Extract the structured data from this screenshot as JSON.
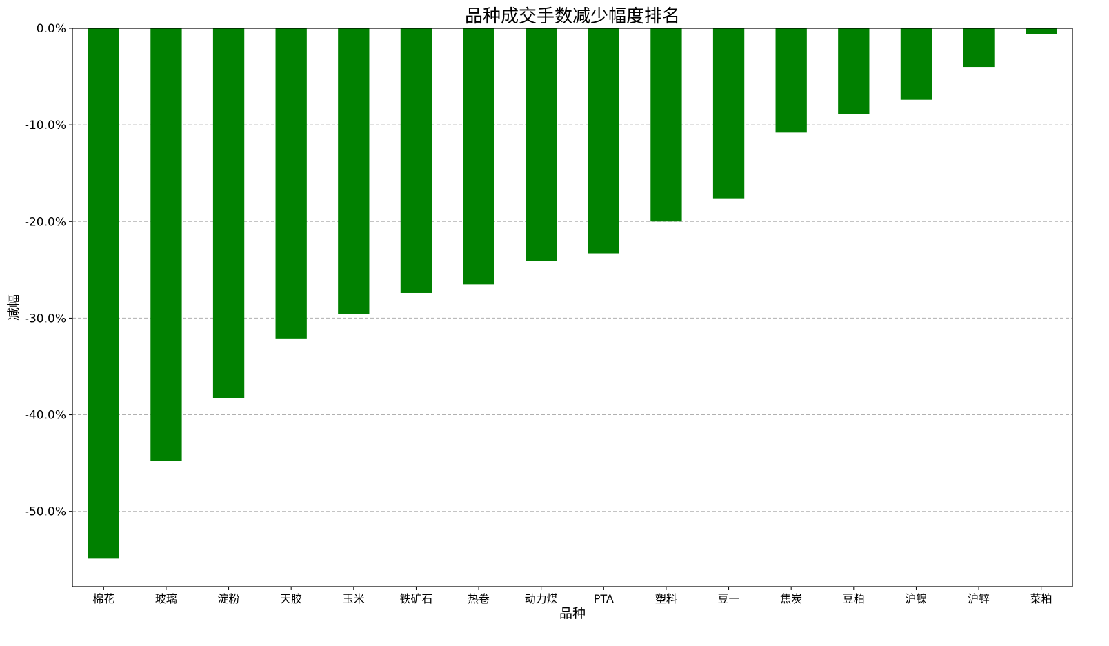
{
  "chart_data": {
    "type": "bar",
    "title": "品种成交手数减少幅度排名",
    "xlabel": "品种",
    "ylabel": "减幅",
    "categories": [
      "棉花",
      "玻璃",
      "淀粉",
      "天胶",
      "玉米",
      "铁矿石",
      "热卷",
      "动力煤",
      "PTA",
      "塑料",
      "豆一",
      "焦炭",
      "豆粕",
      "沪镍",
      "沪锌",
      "菜粕"
    ],
    "values": [
      -54.9,
      -44.8,
      -38.3,
      -32.1,
      -29.6,
      -27.4,
      -26.5,
      -24.1,
      -23.3,
      -20.0,
      -17.6,
      -10.8,
      -8.9,
      -7.4,
      -4.0,
      -0.6
    ],
    "ylim": [
      -57.8,
      0
    ],
    "yticks": [
      0,
      -10,
      -20,
      -30,
      -40,
      -50
    ],
    "ytick_labels": [
      "0.0%",
      "-10.0%",
      "-20.0%",
      "-30.0%",
      "-40.0%",
      "-50.0%"
    ],
    "grid": "y-axis dashed",
    "bar_color": "#008000",
    "grid_color": "#b0b0b0"
  }
}
